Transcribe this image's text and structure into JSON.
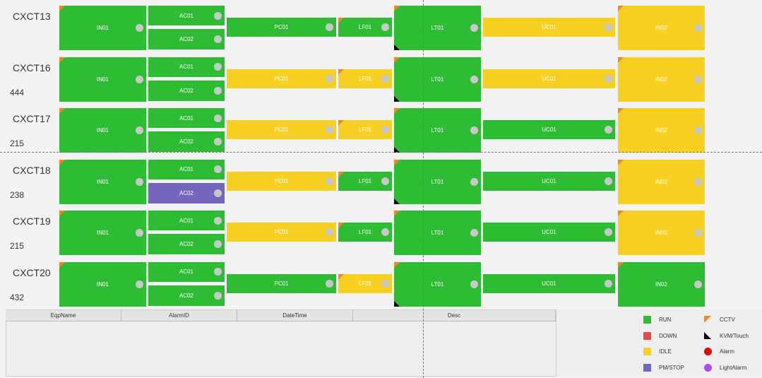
{
  "rows": [
    {
      "name": "CXCT13",
      "equipment": [
        {
          "label": "IN01",
          "state": "RUN",
          "cctv": true
        },
        {
          "label": "AC01",
          "state": "RUN"
        },
        {
          "label": "AC02",
          "state": "RUN"
        },
        {
          "label": "PC01",
          "state": "RUN"
        },
        {
          "label": "LF01",
          "state": "RUN",
          "cctv": true
        },
        {
          "label": "LT01",
          "state": "RUN",
          "cctv": true,
          "kvm": true
        },
        {
          "label": "UC01",
          "state": "IDLE"
        },
        {
          "label": "IN02",
          "state": "IDLE",
          "cctv": true
        }
      ]
    },
    {
      "name": "CXCT16",
      "count": "444",
      "equipment": [
        {
          "label": "IN01",
          "state": "RUN",
          "cctv": true
        },
        {
          "label": "AC01",
          "state": "RUN"
        },
        {
          "label": "AC02",
          "state": "RUN"
        },
        {
          "label": "PC01",
          "state": "IDLE"
        },
        {
          "label": "LF01",
          "state": "IDLE",
          "cctv": true
        },
        {
          "label": "LT01",
          "state": "RUN",
          "cctv": true,
          "kvm": true
        },
        {
          "label": "UC01",
          "state": "IDLE"
        },
        {
          "label": "IN02",
          "state": "IDLE",
          "cctv": true
        }
      ]
    },
    {
      "name": "CXCT17",
      "count": "215",
      "equipment": [
        {
          "label": "IN01",
          "state": "RUN",
          "cctv": true
        },
        {
          "label": "AC01",
          "state": "RUN"
        },
        {
          "label": "AC02",
          "state": "RUN"
        },
        {
          "label": "PC01",
          "state": "IDLE"
        },
        {
          "label": "LF01",
          "state": "IDLE",
          "cctv": true
        },
        {
          "label": "LT01",
          "state": "RUN",
          "cctv": true,
          "kvm": true
        },
        {
          "label": "UC01",
          "state": "RUN"
        },
        {
          "label": "IN02",
          "state": "IDLE",
          "cctv": true
        }
      ]
    },
    {
      "name": "CXCT18",
      "count": "238",
      "equipment": [
        {
          "label": "IN01",
          "state": "RUN",
          "cctv": true
        },
        {
          "label": "AC01",
          "state": "RUN"
        },
        {
          "label": "AC02",
          "state": "PM/STOP"
        },
        {
          "label": "PC01",
          "state": "IDLE"
        },
        {
          "label": "LF01",
          "state": "RUN",
          "cctv": true
        },
        {
          "label": "LT01",
          "state": "RUN",
          "cctv": true,
          "kvm": true
        },
        {
          "label": "UC01",
          "state": "RUN"
        },
        {
          "label": "IN02",
          "state": "IDLE",
          "cctv": true
        }
      ]
    },
    {
      "name": "CXCT19",
      "count": "215",
      "equipment": [
        {
          "label": "IN01",
          "state": "RUN",
          "cctv": true
        },
        {
          "label": "AC01",
          "state": "RUN"
        },
        {
          "label": "AC02",
          "state": "RUN"
        },
        {
          "label": "PC01",
          "state": "IDLE"
        },
        {
          "label": "LF01",
          "state": "RUN",
          "cctv": true
        },
        {
          "label": "LT01",
          "state": "RUN",
          "cctv": true
        },
        {
          "label": "UC01",
          "state": "RUN"
        },
        {
          "label": "IN02",
          "state": "IDLE",
          "cctv": true
        }
      ]
    },
    {
      "name": "CXCT20",
      "count": "432",
      "equipment": [
        {
          "label": "IN01",
          "state": "RUN",
          "cctv": true
        },
        {
          "label": "AC01",
          "state": "RUN"
        },
        {
          "label": "AC02",
          "state": "RUN"
        },
        {
          "label": "PC01",
          "state": "RUN"
        },
        {
          "label": "LF01",
          "state": "IDLE",
          "cctv": true
        },
        {
          "label": "LT01",
          "state": "RUN",
          "cctv": true,
          "kvm": true
        },
        {
          "label": "UC01",
          "state": "RUN"
        },
        {
          "label": "IN02",
          "state": "RUN",
          "cctv": true
        }
      ]
    }
  ],
  "table": {
    "columns": [
      "EqpName",
      "AlarmID",
      "DateTime",
      "Desc"
    ]
  },
  "legend": [
    {
      "label": "RUN",
      "color": "#2fbc35",
      "shape": "square"
    },
    {
      "label": "DOWN",
      "color": "#e8474c",
      "shape": "square"
    },
    {
      "label": "IDLE",
      "color": "#f7d021",
      "shape": "square"
    },
    {
      "label": "PM/STOP",
      "color": "#7466bd",
      "shape": "square"
    },
    {
      "label": "CCTV",
      "color": "#f08a1c",
      "shape": "triangle"
    },
    {
      "label": "KVM/Touch",
      "color": "#000000",
      "shape": "corner"
    },
    {
      "label": "Alarm",
      "color": "#e60000",
      "shape": "circle"
    },
    {
      "label": "LightAlarm",
      "color": "#a64cf0",
      "shape": "circle"
    }
  ]
}
